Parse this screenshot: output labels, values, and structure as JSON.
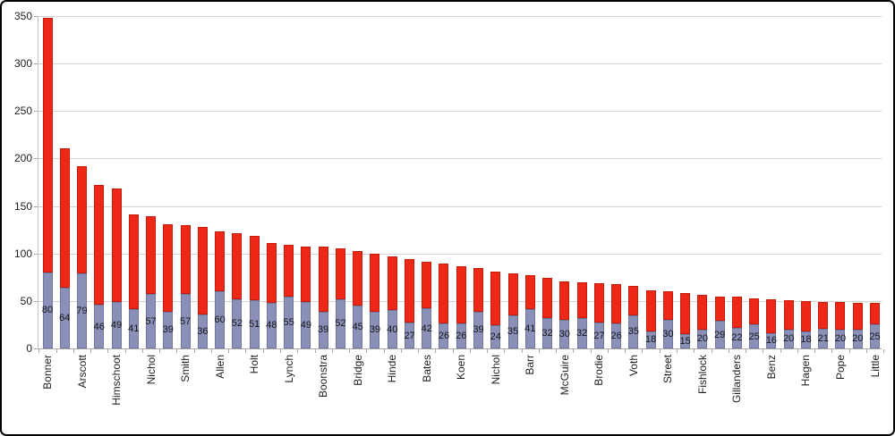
{
  "chart_data": {
    "type": "bar",
    "stacked": true,
    "title": "",
    "xlabel": "",
    "ylabel": "",
    "ylim": [
      0,
      350
    ],
    "y_ticks": [
      0,
      50,
      100,
      150,
      200,
      250,
      300,
      350
    ],
    "grid": true,
    "legend": "none",
    "data_labels_shown_for": "base",
    "series_colors": {
      "base": "#8a90b8",
      "top": "#ed2817"
    },
    "series_border_colors": {
      "base": "#70769c",
      "top": "#c51c0e"
    },
    "bars": [
      {
        "label": "Bonner",
        "base": 80,
        "total": 348
      },
      {
        "label": "",
        "base": 64,
        "total": 211
      },
      {
        "label": "Arscott",
        "base": 79,
        "total": 192
      },
      {
        "label": "",
        "base": 46,
        "total": 172
      },
      {
        "label": "Himschoot",
        "base": 49,
        "total": 168
      },
      {
        "label": "",
        "base": 41,
        "total": 141
      },
      {
        "label": "Nichol",
        "base": 57,
        "total": 139
      },
      {
        "label": "",
        "base": 39,
        "total": 131
      },
      {
        "label": "Smith",
        "base": 57,
        "total": 130
      },
      {
        "label": "",
        "base": 36,
        "total": 128
      },
      {
        "label": "Allen",
        "base": 60,
        "total": 123
      },
      {
        "label": "",
        "base": 52,
        "total": 121
      },
      {
        "label": "Holt",
        "base": 51,
        "total": 119
      },
      {
        "label": "",
        "base": 48,
        "total": 111
      },
      {
        "label": "Lynch",
        "base": 55,
        "total": 109
      },
      {
        "label": "",
        "base": 49,
        "total": 107
      },
      {
        "label": "Boonstra",
        "base": 39,
        "total": 107
      },
      {
        "label": "",
        "base": 52,
        "total": 105
      },
      {
        "label": "Bridge",
        "base": 45,
        "total": 103
      },
      {
        "label": "",
        "base": 39,
        "total": 100
      },
      {
        "label": "Hinde",
        "base": 40,
        "total": 97
      },
      {
        "label": "",
        "base": 27,
        "total": 94
      },
      {
        "label": "Bates",
        "base": 42,
        "total": 91
      },
      {
        "label": "",
        "base": 26,
        "total": 89
      },
      {
        "label": "Koen",
        "base": 26,
        "total": 87
      },
      {
        "label": "",
        "base": 39,
        "total": 85
      },
      {
        "label": "Nichol",
        "base": 24,
        "total": 81
      },
      {
        "label": "",
        "base": 35,
        "total": 79
      },
      {
        "label": "Barr",
        "base": 41,
        "total": 77
      },
      {
        "label": "",
        "base": 32,
        "total": 74
      },
      {
        "label": "McGuire",
        "base": 30,
        "total": 71
      },
      {
        "label": "",
        "base": 32,
        "total": 70
      },
      {
        "label": "Brodie",
        "base": 27,
        "total": 69
      },
      {
        "label": "",
        "base": 26,
        "total": 68
      },
      {
        "label": "Voth",
        "base": 35,
        "total": 66
      },
      {
        "label": "",
        "base": 18,
        "total": 61
      },
      {
        "label": "Street",
        "base": 30,
        "total": 60
      },
      {
        "label": "",
        "base": 15,
        "total": 58
      },
      {
        "label": "Fishlock",
        "base": 20,
        "total": 56
      },
      {
        "label": "",
        "base": 29,
        "total": 55
      },
      {
        "label": "Gillanders",
        "base": 22,
        "total": 55
      },
      {
        "label": "",
        "base": 25,
        "total": 53
      },
      {
        "label": "Benz",
        "base": 16,
        "total": 52
      },
      {
        "label": "",
        "base": 20,
        "total": 51
      },
      {
        "label": "Hagen",
        "base": 18,
        "total": 50
      },
      {
        "label": "",
        "base": 21,
        "total": 49
      },
      {
        "label": "Pope",
        "base": 20,
        "total": 49
      },
      {
        "label": "",
        "base": 20,
        "total": 48
      },
      {
        "label": "Little",
        "base": 25,
        "total": 48
      }
    ]
  }
}
